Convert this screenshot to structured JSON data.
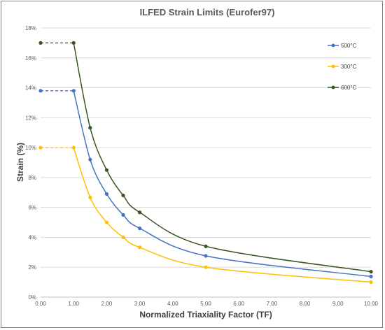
{
  "chart_data": {
    "type": "line",
    "title": "ILFED Strain Limits (Eurofer97)",
    "xlabel": "Normalized Triaxiality Factor (TF)",
    "ylabel": "Strain (%)",
    "xlim": [
      0,
      10
    ],
    "ylim": [
      0,
      18
    ],
    "x_ticks": [
      "0.00",
      "1.00",
      "2.00",
      "3.00",
      "4.00",
      "5.00",
      "6.00",
      "7.00",
      "8.00",
      "9.00",
      "10.00"
    ],
    "y_ticks": [
      "0%",
      "2%",
      "4%",
      "6%",
      "8%",
      "10%",
      "12%",
      "14%",
      "16%",
      "18%"
    ],
    "grid": "horizontal",
    "legend_position": "top-right",
    "series": [
      {
        "name": "500°C",
        "color": "#4472C4",
        "dashed_from": [
          0,
          13.8
        ],
        "x": [
          1.0,
          1.5,
          2.0,
          2.5,
          3.0,
          5.0,
          10.0
        ],
        "y": [
          13.8,
          9.2,
          6.9,
          5.5,
          4.6,
          2.76,
          1.38
        ]
      },
      {
        "name": "300°C",
        "color": "#FFC000",
        "dashed_from": [
          0,
          10.0
        ],
        "x": [
          1.0,
          1.5,
          2.0,
          2.5,
          3.0,
          5.0,
          10.0
        ],
        "y": [
          10.0,
          6.67,
          5.0,
          4.0,
          3.33,
          2.0,
          1.0
        ]
      },
      {
        "name": "600°C",
        "color": "#375623",
        "dashed_from": [
          0,
          17.0
        ],
        "x": [
          1.0,
          1.5,
          2.0,
          2.5,
          3.0,
          5.0,
          10.0
        ],
        "y": [
          17.0,
          11.33,
          8.5,
          6.8,
          5.67,
          3.4,
          1.7
        ]
      }
    ]
  }
}
